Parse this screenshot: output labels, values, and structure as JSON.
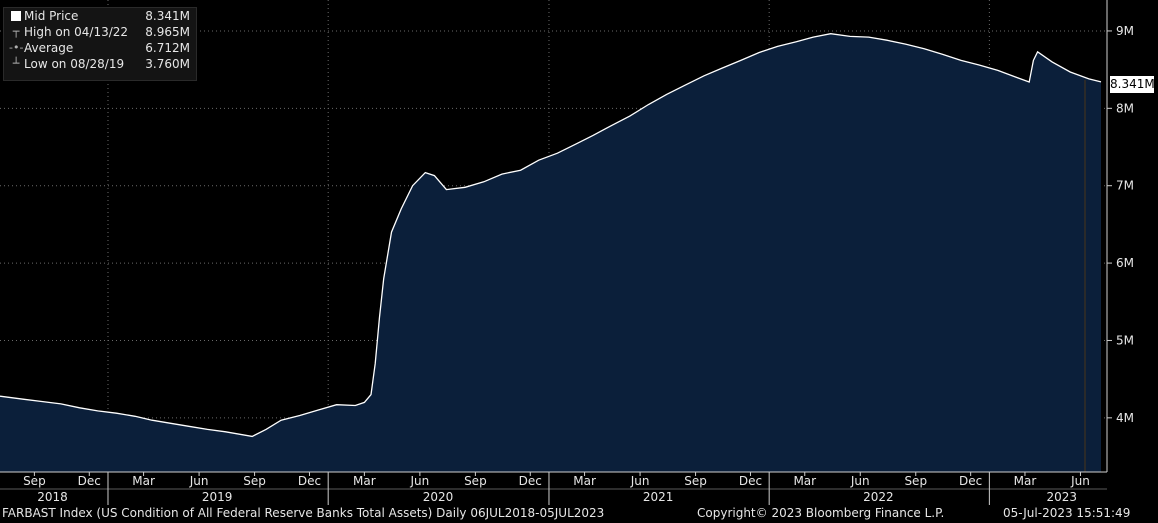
{
  "legend": {
    "mid": {
      "label": "Mid Price",
      "value": "8.341M",
      "icon": "white-square-icon"
    },
    "high": {
      "label": "High on 04/13/22",
      "value": "8.965M",
      "icon": "high-marker-icon"
    },
    "avg": {
      "label": "Average",
      "value": "6.712M",
      "icon": "average-marker-icon"
    },
    "low": {
      "label": "Low on 08/28/19",
      "value": "3.760M",
      "icon": "low-marker-icon"
    }
  },
  "last_value_tag": "8.341M",
  "footer": {
    "left": "FARBAST Index (US Condition of All Federal Reserve Banks Total Assets)  Daily 06JUL2018-05JUL2023",
    "center": "Copyright© 2023 Bloomberg Finance L.P.",
    "right": "05-Jul-2023 15:51:49"
  },
  "colors": {
    "background": "#000000",
    "fill": "#0b1f3a",
    "line": "#ffffff",
    "grid": "#6a6a6a",
    "text": "#e6e6e6"
  },
  "chart_data": {
    "type": "area",
    "title": "",
    "xlabel": "",
    "ylabel": "",
    "ylim": [
      3.3,
      9.4
    ],
    "y_ticks": [
      {
        "value": 4,
        "label": "4M"
      },
      {
        "value": 5,
        "label": "5M"
      },
      {
        "value": 6,
        "label": "6M"
      },
      {
        "value": 7,
        "label": "7M"
      },
      {
        "value": 8,
        "label": "8M"
      },
      {
        "value": 9,
        "label": "9M"
      }
    ],
    "x_range": [
      "2018-07-06",
      "2023-07-05"
    ],
    "x_month_ticks": [
      {
        "date": "2018-09-01",
        "label": "Sep"
      },
      {
        "date": "2018-12-01",
        "label": "Dec"
      },
      {
        "date": "2019-03-01",
        "label": "Mar"
      },
      {
        "date": "2019-06-01",
        "label": "Jun"
      },
      {
        "date": "2019-09-01",
        "label": "Sep"
      },
      {
        "date": "2019-12-01",
        "label": "Dec"
      },
      {
        "date": "2020-03-01",
        "label": "Mar"
      },
      {
        "date": "2020-06-01",
        "label": "Jun"
      },
      {
        "date": "2020-09-01",
        "label": "Sep"
      },
      {
        "date": "2020-12-01",
        "label": "Dec"
      },
      {
        "date": "2021-03-01",
        "label": "Mar"
      },
      {
        "date": "2021-06-01",
        "label": "Jun"
      },
      {
        "date": "2021-09-01",
        "label": "Sep"
      },
      {
        "date": "2021-12-01",
        "label": "Dec"
      },
      {
        "date": "2022-03-01",
        "label": "Mar"
      },
      {
        "date": "2022-06-01",
        "label": "Jun"
      },
      {
        "date": "2022-09-01",
        "label": "Sep"
      },
      {
        "date": "2022-12-01",
        "label": "Dec"
      },
      {
        "date": "2023-03-01",
        "label": "Mar"
      },
      {
        "date": "2023-06-01",
        "label": "Jun"
      }
    ],
    "x_year_labels": [
      {
        "date": "2018-10-01",
        "label": "2018"
      },
      {
        "date": "2019-07-01",
        "label": "2019"
      },
      {
        "date": "2020-07-01",
        "label": "2020"
      },
      {
        "date": "2021-07-01",
        "label": "2021"
      },
      {
        "date": "2022-07-01",
        "label": "2022"
      },
      {
        "date": "2023-05-01",
        "label": "2023"
      }
    ],
    "x_year_boundaries": [
      "2019-01-01",
      "2020-01-01",
      "2021-01-01",
      "2022-01-01",
      "2023-01-01"
    ],
    "grid": true,
    "series": [
      {
        "values_unit": "millions USD (M)",
        "points": [
          [
            "2018-07-06",
            4.28
          ],
          [
            "2018-08-15",
            4.24
          ],
          [
            "2018-09-15",
            4.21
          ],
          [
            "2018-10-15",
            4.18
          ],
          [
            "2018-11-15",
            4.13
          ],
          [
            "2018-12-15",
            4.09
          ],
          [
            "2019-01-15",
            4.06
          ],
          [
            "2019-02-15",
            4.02
          ],
          [
            "2019-03-15",
            3.97
          ],
          [
            "2019-04-15",
            3.93
          ],
          [
            "2019-05-15",
            3.89
          ],
          [
            "2019-06-15",
            3.85
          ],
          [
            "2019-07-15",
            3.82
          ],
          [
            "2019-08-28",
            3.76
          ],
          [
            "2019-09-20",
            3.85
          ],
          [
            "2019-10-15",
            3.97
          ],
          [
            "2019-11-15",
            4.03
          ],
          [
            "2019-12-15",
            4.1
          ],
          [
            "2020-01-15",
            4.17
          ],
          [
            "2020-02-15",
            4.16
          ],
          [
            "2020-03-01",
            4.2
          ],
          [
            "2020-03-12",
            4.3
          ],
          [
            "2020-03-19",
            4.7
          ],
          [
            "2020-03-26",
            5.3
          ],
          [
            "2020-04-02",
            5.8
          ],
          [
            "2020-04-15",
            6.4
          ],
          [
            "2020-05-01",
            6.7
          ],
          [
            "2020-05-20",
            7.0
          ],
          [
            "2020-06-10",
            7.17
          ],
          [
            "2020-06-25",
            7.13
          ],
          [
            "2020-07-15",
            6.95
          ],
          [
            "2020-08-15",
            6.98
          ],
          [
            "2020-09-15",
            7.05
          ],
          [
            "2020-10-15",
            7.15
          ],
          [
            "2020-11-15",
            7.2
          ],
          [
            "2020-12-15",
            7.33
          ],
          [
            "2021-01-15",
            7.42
          ],
          [
            "2021-02-15",
            7.54
          ],
          [
            "2021-03-15",
            7.65
          ],
          [
            "2021-04-15",
            7.78
          ],
          [
            "2021-05-15",
            7.9
          ],
          [
            "2021-06-15",
            8.05
          ],
          [
            "2021-07-15",
            8.18
          ],
          [
            "2021-08-15",
            8.3
          ],
          [
            "2021-09-15",
            8.42
          ],
          [
            "2021-10-15",
            8.52
          ],
          [
            "2021-11-15",
            8.62
          ],
          [
            "2021-12-15",
            8.72
          ],
          [
            "2022-01-15",
            8.8
          ],
          [
            "2022-02-15",
            8.86
          ],
          [
            "2022-03-15",
            8.92
          ],
          [
            "2022-04-13",
            8.965
          ],
          [
            "2022-05-15",
            8.93
          ],
          [
            "2022-06-15",
            8.92
          ],
          [
            "2022-07-15",
            8.88
          ],
          [
            "2022-08-15",
            8.83
          ],
          [
            "2022-09-15",
            8.77
          ],
          [
            "2022-10-15",
            8.7
          ],
          [
            "2022-11-15",
            8.62
          ],
          [
            "2022-12-15",
            8.56
          ],
          [
            "2023-01-15",
            8.49
          ],
          [
            "2023-02-15",
            8.4
          ],
          [
            "2023-03-08",
            8.34
          ],
          [
            "2023-03-15",
            8.62
          ],
          [
            "2023-03-22",
            8.73
          ],
          [
            "2023-04-15",
            8.6
          ],
          [
            "2023-05-15",
            8.47
          ],
          [
            "2023-06-15",
            8.38
          ],
          [
            "2023-07-05",
            8.341
          ]
        ]
      }
    ]
  }
}
